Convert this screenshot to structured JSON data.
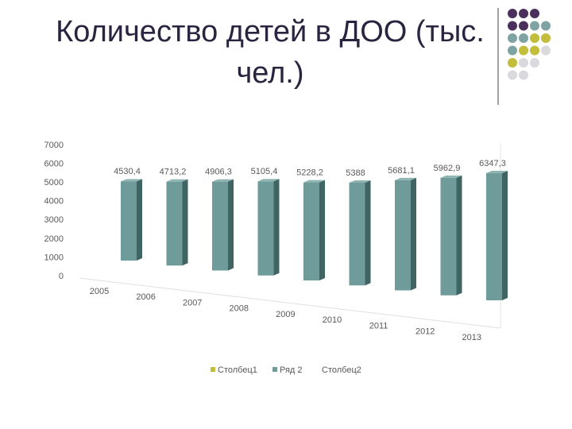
{
  "chart_data": {
    "type": "bar3d",
    "title": "Количество детей в ДОО (тыс. чел.)",
    "categories": [
      "2005",
      "2006",
      "2007",
      "2008",
      "2009",
      "2010",
      "2011",
      "2012",
      "2013"
    ],
    "series": [
      {
        "name": "Столбец1",
        "color": "#c2bd3a",
        "values": [
          null,
          null,
          null,
          null,
          null,
          null,
          null,
          null,
          null
        ]
      },
      {
        "name": "Ряд 2",
        "color": "#6f9c9a",
        "values": [
          4530.4,
          4713.2,
          4906.3,
          5105.4,
          5228.2,
          5388,
          5681.1,
          5962.9,
          6347.3
        ],
        "value_labels": [
          "4530,4",
          "4713,2",
          "4906,3",
          "5105,4",
          "5228,2",
          "5388",
          "5681,1",
          "5962,9",
          "6347,3"
        ]
      },
      {
        "name": "Столбец2",
        "color": "#ffffff",
        "values": [
          null,
          null,
          null,
          null,
          null,
          null,
          null,
          null,
          null
        ]
      }
    ],
    "ylim": [
      0,
      7000
    ],
    "yticks": [
      0,
      1000,
      2000,
      3000,
      4000,
      5000,
      6000,
      7000
    ],
    "legend": "bottom"
  }
}
